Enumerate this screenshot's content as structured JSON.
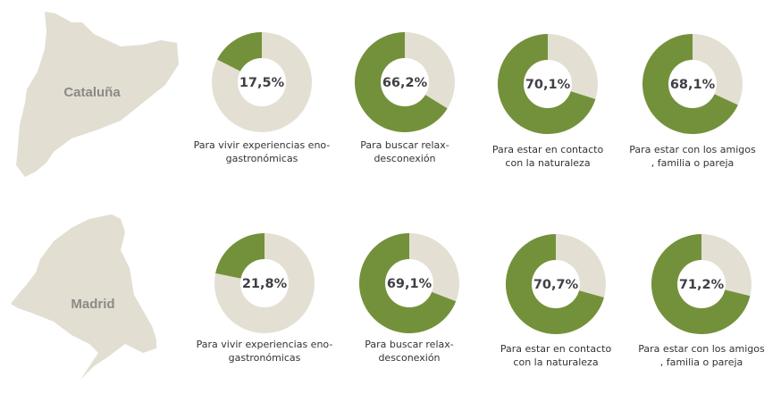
{
  "colors": {
    "green": "#73913a",
    "beige": "#e3dfd3",
    "map": "#e2ded2"
  },
  "chart_data": {
    "type": "pie",
    "subtype": "donut",
    "categories": [
      "Para vivir experiencias eno-gastronómicas",
      "Para buscar relax-desconexión",
      "Para estar en contacto con la naturaleza",
      "Para estar con los amigos , familia o pareja"
    ],
    "category_lines": [
      [
        "Para vivir experiencias eno-",
        "gastronómicas"
      ],
      [
        "Para buscar relax-",
        "desconexión"
      ],
      [
        "Para estar en contacto",
        "con la naturaleza"
      ],
      [
        "Para estar con los amigos",
        ", familia o pareja"
      ]
    ],
    "series": [
      {
        "name": "Cataluña",
        "values": [
          17.5,
          66.2,
          70.1,
          68.1
        ],
        "labels": [
          "17,5%",
          "66,2%",
          "70,1%",
          "68,1%"
        ]
      },
      {
        "name": "Madrid",
        "values": [
          21.8,
          69.1,
          70.7,
          71.2
        ],
        "labels": [
          "21,8%",
          "69,1%",
          "70,7%",
          "71,2%"
        ]
      }
    ],
    "unit": "%"
  }
}
